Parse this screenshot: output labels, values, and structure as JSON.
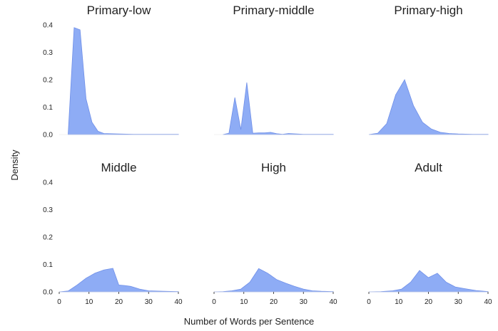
{
  "figure": {
    "ylabel": "Density",
    "xlabel": "Number of Words per Sentence",
    "fill_color": "#8eacf5",
    "stroke_color": "#6f8fe8",
    "axis_color": "#222222"
  },
  "chart_data": [
    {
      "type": "area",
      "title": "Primary-low",
      "xlim": [
        0,
        40
      ],
      "ylim": [
        0,
        0.4
      ],
      "xticks": [
        0,
        10,
        20,
        30,
        40
      ],
      "yticks": [
        0.0,
        0.1,
        0.2,
        0.3,
        0.4
      ],
      "x": [
        3,
        5,
        7,
        9,
        11,
        13,
        15,
        20,
        25,
        30,
        35,
        40
      ],
      "y": [
        0,
        0.39,
        0.382,
        0.13,
        0.045,
        0.012,
        0.004,
        0.002,
        0.001,
        0.001,
        0.001,
        0.001
      ]
    },
    {
      "type": "area",
      "title": "Primary-middle",
      "xlim": [
        0,
        40
      ],
      "ylim": [
        0,
        0.4
      ],
      "xticks": [
        0,
        10,
        20,
        30,
        40
      ],
      "yticks": [
        0.0,
        0.1,
        0.2,
        0.3,
        0.4
      ],
      "x": [
        3,
        5,
        7,
        9,
        11,
        13,
        15,
        17,
        19,
        21,
        23,
        25,
        30,
        35,
        40
      ],
      "y": [
        0,
        0.005,
        0.135,
        0.018,
        0.19,
        0.005,
        0.006,
        0.006,
        0.008,
        0.003,
        0.001,
        0.004,
        0.001,
        0.001,
        0.001
      ]
    },
    {
      "type": "area",
      "title": "Primary-high",
      "xlim": [
        0,
        40
      ],
      "ylim": [
        0,
        0.4
      ],
      "xticks": [
        0,
        10,
        20,
        30,
        40
      ],
      "yticks": [
        0.0,
        0.1,
        0.2,
        0.3,
        0.4
      ],
      "x": [
        0,
        3,
        6,
        9,
        12,
        15,
        18,
        21,
        24,
        27,
        30,
        35,
        40
      ],
      "y": [
        0,
        0.005,
        0.04,
        0.145,
        0.2,
        0.105,
        0.045,
        0.02,
        0.008,
        0.004,
        0.002,
        0.001,
        0.001
      ]
    },
    {
      "type": "area",
      "title": "Middle",
      "xlim": [
        0,
        40
      ],
      "ylim": [
        0,
        0.4
      ],
      "xticks": [
        0,
        10,
        20,
        30,
        40
      ],
      "yticks": [
        0.0,
        0.1,
        0.2,
        0.3,
        0.4
      ],
      "x": [
        0,
        3,
        6,
        9,
        12,
        15,
        18,
        20,
        22,
        24,
        27,
        30,
        35,
        40
      ],
      "y": [
        0,
        0.003,
        0.025,
        0.05,
        0.068,
        0.08,
        0.086,
        0.025,
        0.023,
        0.02,
        0.01,
        0.004,
        0.002,
        0.001
      ]
    },
    {
      "type": "area",
      "title": "High",
      "xlim": [
        0,
        40
      ],
      "ylim": [
        0,
        0.4
      ],
      "xticks": [
        0,
        10,
        20,
        30,
        40
      ],
      "yticks": [
        0.0,
        0.1,
        0.2,
        0.3,
        0.4
      ],
      "x": [
        0,
        3,
        6,
        9,
        12,
        15,
        18,
        21,
        24,
        27,
        30,
        33,
        36,
        40
      ],
      "y": [
        0,
        0.001,
        0.004,
        0.01,
        0.035,
        0.085,
        0.068,
        0.045,
        0.032,
        0.02,
        0.01,
        0.004,
        0.002,
        0.001
      ]
    },
    {
      "type": "area",
      "title": "Adult",
      "xlim": [
        0,
        40
      ],
      "ylim": [
        0,
        0.4
      ],
      "xticks": [
        0,
        10,
        20,
        30,
        40
      ],
      "yticks": [
        0.0,
        0.1,
        0.2,
        0.3,
        0.4
      ],
      "x": [
        0,
        4,
        8,
        11,
        14,
        17,
        20,
        23,
        26,
        29,
        32,
        36,
        40
      ],
      "y": [
        0,
        0.001,
        0.004,
        0.01,
        0.035,
        0.078,
        0.052,
        0.068,
        0.035,
        0.018,
        0.012,
        0.005,
        0.001
      ]
    }
  ]
}
